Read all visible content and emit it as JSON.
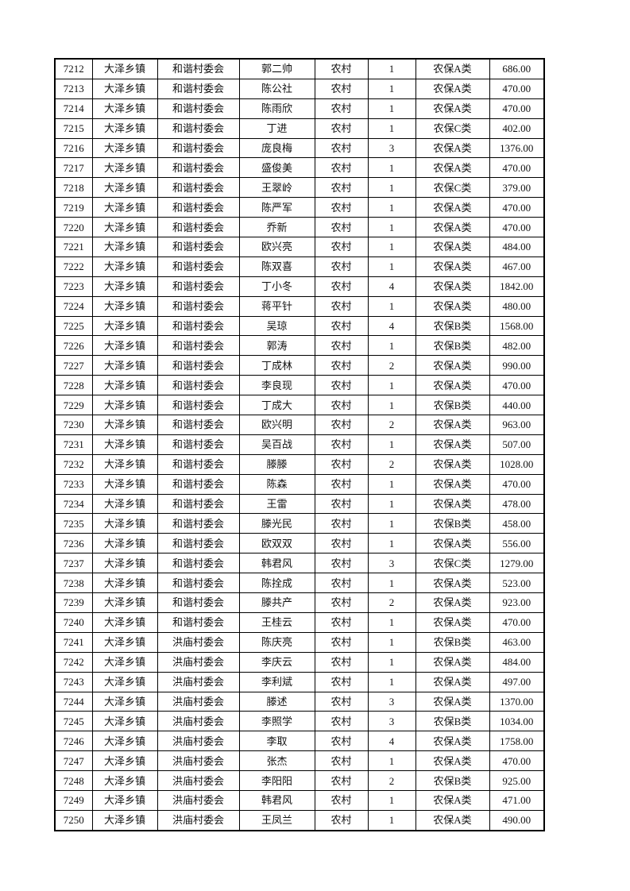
{
  "table": {
    "rows": [
      [
        "7212",
        "大泽乡镇",
        "和谐村委会",
        "郭二帅",
        "农村",
        "1",
        "农保A类",
        "686.00"
      ],
      [
        "7213",
        "大泽乡镇",
        "和谐村委会",
        "陈公社",
        "农村",
        "1",
        "农保A类",
        "470.00"
      ],
      [
        "7214",
        "大泽乡镇",
        "和谐村委会",
        "陈雨欣",
        "农村",
        "1",
        "农保A类",
        "470.00"
      ],
      [
        "7215",
        "大泽乡镇",
        "和谐村委会",
        "丁进",
        "农村",
        "1",
        "农保C类",
        "402.00"
      ],
      [
        "7216",
        "大泽乡镇",
        "和谐村委会",
        "庞良梅",
        "农村",
        "3",
        "农保A类",
        "1376.00"
      ],
      [
        "7217",
        "大泽乡镇",
        "和谐村委会",
        "盛俊美",
        "农村",
        "1",
        "农保A类",
        "470.00"
      ],
      [
        "7218",
        "大泽乡镇",
        "和谐村委会",
        "王翠岭",
        "农村",
        "1",
        "农保C类",
        "379.00"
      ],
      [
        "7219",
        "大泽乡镇",
        "和谐村委会",
        "陈严军",
        "农村",
        "1",
        "农保A类",
        "470.00"
      ],
      [
        "7220",
        "大泽乡镇",
        "和谐村委会",
        "乔新",
        "农村",
        "1",
        "农保A类",
        "470.00"
      ],
      [
        "7221",
        "大泽乡镇",
        "和谐村委会",
        "欧兴亮",
        "农村",
        "1",
        "农保A类",
        "484.00"
      ],
      [
        "7222",
        "大泽乡镇",
        "和谐村委会",
        "陈双喜",
        "农村",
        "1",
        "农保A类",
        "467.00"
      ],
      [
        "7223",
        "大泽乡镇",
        "和谐村委会",
        "丁小冬",
        "农村",
        "4",
        "农保A类",
        "1842.00"
      ],
      [
        "7224",
        "大泽乡镇",
        "和谐村委会",
        "蒋平针",
        "农村",
        "1",
        "农保A类",
        "480.00"
      ],
      [
        "7225",
        "大泽乡镇",
        "和谐村委会",
        "吴琼",
        "农村",
        "4",
        "农保B类",
        "1568.00"
      ],
      [
        "7226",
        "大泽乡镇",
        "和谐村委会",
        "郭涛",
        "农村",
        "1",
        "农保B类",
        "482.00"
      ],
      [
        "7227",
        "大泽乡镇",
        "和谐村委会",
        "丁成林",
        "农村",
        "2",
        "农保A类",
        "990.00"
      ],
      [
        "7228",
        "大泽乡镇",
        "和谐村委会",
        "李良现",
        "农村",
        "1",
        "农保A类",
        "470.00"
      ],
      [
        "7229",
        "大泽乡镇",
        "和谐村委会",
        "丁成大",
        "农村",
        "1",
        "农保B类",
        "440.00"
      ],
      [
        "7230",
        "大泽乡镇",
        "和谐村委会",
        "欧兴明",
        "农村",
        "2",
        "农保A类",
        "963.00"
      ],
      [
        "7231",
        "大泽乡镇",
        "和谐村委会",
        "吴百战",
        "农村",
        "1",
        "农保A类",
        "507.00"
      ],
      [
        "7232",
        "大泽乡镇",
        "和谐村委会",
        "滕滕",
        "农村",
        "2",
        "农保A类",
        "1028.00"
      ],
      [
        "7233",
        "大泽乡镇",
        "和谐村委会",
        "陈森",
        "农村",
        "1",
        "农保A类",
        "470.00"
      ],
      [
        "7234",
        "大泽乡镇",
        "和谐村委会",
        "王雷",
        "农村",
        "1",
        "农保A类",
        "478.00"
      ],
      [
        "7235",
        "大泽乡镇",
        "和谐村委会",
        "滕光民",
        "农村",
        "1",
        "农保B类",
        "458.00"
      ],
      [
        "7236",
        "大泽乡镇",
        "和谐村委会",
        "欧双双",
        "农村",
        "1",
        "农保A类",
        "556.00"
      ],
      [
        "7237",
        "大泽乡镇",
        "和谐村委会",
        "韩君风",
        "农村",
        "3",
        "农保C类",
        "1279.00"
      ],
      [
        "7238",
        "大泽乡镇",
        "和谐村委会",
        "陈拴成",
        "农村",
        "1",
        "农保A类",
        "523.00"
      ],
      [
        "7239",
        "大泽乡镇",
        "和谐村委会",
        "滕共产",
        "农村",
        "2",
        "农保A类",
        "923.00"
      ],
      [
        "7240",
        "大泽乡镇",
        "和谐村委会",
        "王桂云",
        "农村",
        "1",
        "农保A类",
        "470.00"
      ],
      [
        "7241",
        "大泽乡镇",
        "洪庙村委会",
        "陈庆亮",
        "农村",
        "1",
        "农保B类",
        "463.00"
      ],
      [
        "7242",
        "大泽乡镇",
        "洪庙村委会",
        "李庆云",
        "农村",
        "1",
        "农保A类",
        "484.00"
      ],
      [
        "7243",
        "大泽乡镇",
        "洪庙村委会",
        "李利斌",
        "农村",
        "1",
        "农保A类",
        "497.00"
      ],
      [
        "7244",
        "大泽乡镇",
        "洪庙村委会",
        "滕述",
        "农村",
        "3",
        "农保A类",
        "1370.00"
      ],
      [
        "7245",
        "大泽乡镇",
        "洪庙村委会",
        "李照学",
        "农村",
        "3",
        "农保B类",
        "1034.00"
      ],
      [
        "7246",
        "大泽乡镇",
        "洪庙村委会",
        "李取",
        "农村",
        "4",
        "农保A类",
        "1758.00"
      ],
      [
        "7247",
        "大泽乡镇",
        "洪庙村委会",
        "张杰",
        "农村",
        "1",
        "农保A类",
        "470.00"
      ],
      [
        "7248",
        "大泽乡镇",
        "洪庙村委会",
        "李阳阳",
        "农村",
        "2",
        "农保B类",
        "925.00"
      ],
      [
        "7249",
        "大泽乡镇",
        "洪庙村委会",
        "韩君风",
        "农村",
        "1",
        "农保A类",
        "471.00"
      ],
      [
        "7250",
        "大泽乡镇",
        "洪庙村委会",
        "王凤兰",
        "农村",
        "1",
        "农保A类",
        "490.00"
      ]
    ]
  }
}
